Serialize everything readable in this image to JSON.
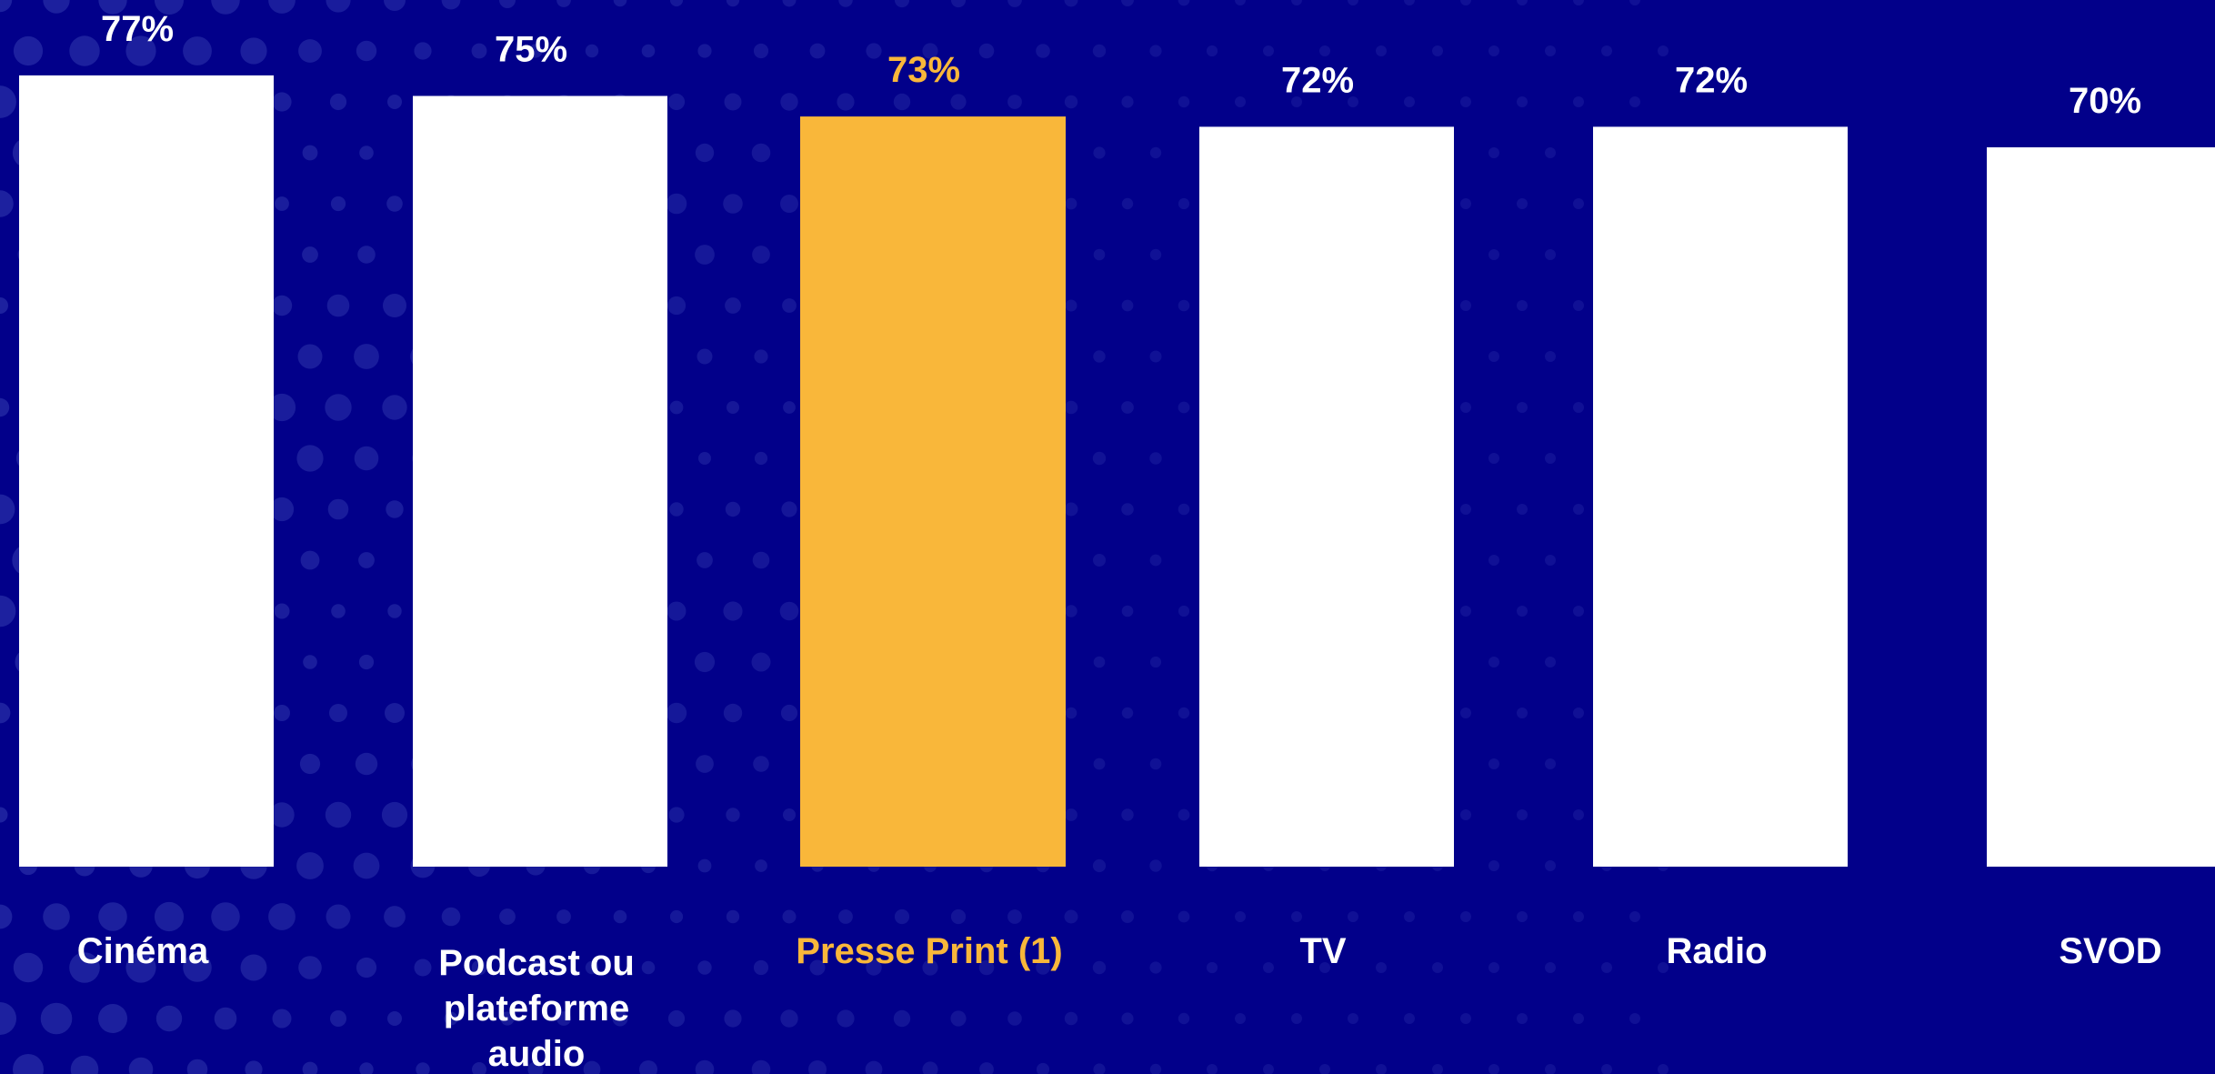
{
  "chart_data": {
    "type": "bar",
    "categories": [
      "Cinéma",
      "Podcast ou plateforme audio",
      "Presse Print (1)",
      "TV",
      "Radio",
      "SVOD"
    ],
    "category_lines": [
      [
        "Cinéma"
      ],
      [
        "Podcast ou",
        "plateforme",
        "audio"
      ],
      [
        "Presse Print (1)"
      ],
      [
        "TV"
      ],
      [
        "Radio"
      ],
      [
        "SVOD"
      ]
    ],
    "values": [
      77,
      75,
      73,
      72,
      72,
      70
    ],
    "value_labels": [
      "77%",
      "75%",
      "73%",
      "72%",
      "72%",
      "70%"
    ],
    "highlight_index": 2,
    "title": "",
    "xlabel": "",
    "ylabel": "",
    "grid": false,
    "legend": "none"
  },
  "colors": {
    "background": "#02008a",
    "dots": "#2a2fa8",
    "bar": "#ffffff",
    "highlight": "#f9b73a",
    "text": "#ffffff"
  }
}
